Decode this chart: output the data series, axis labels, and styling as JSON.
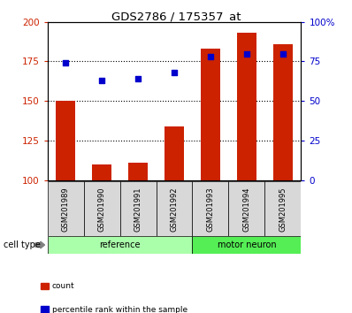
{
  "title": "GDS2786 / 175357_at",
  "samples": [
    "GSM201989",
    "GSM201990",
    "GSM201991",
    "GSM201992",
    "GSM201993",
    "GSM201994",
    "GSM201995"
  ],
  "bar_values": [
    150,
    110,
    111,
    134,
    183,
    193,
    186
  ],
  "scatter_pct": [
    74,
    63,
    64,
    68,
    78,
    80,
    80
  ],
  "bar_color": "#cc2200",
  "scatter_color": "#0000cc",
  "ylim_left": [
    100,
    200
  ],
  "ylim_right": [
    0,
    100
  ],
  "yticks_left": [
    100,
    125,
    150,
    175,
    200
  ],
  "yticks_right": [
    0,
    25,
    50,
    75,
    100
  ],
  "ytick_labels_left": [
    "100",
    "125",
    "150",
    "175",
    "200"
  ],
  "ytick_labels_right": [
    "0",
    "25",
    "50",
    "75",
    "100%"
  ],
  "hgrid_vals": [
    125,
    150,
    175
  ],
  "groups": [
    {
      "label": "reference",
      "start": 0,
      "end": 3,
      "color": "#aaffaa"
    },
    {
      "label": "motor neuron",
      "start": 4,
      "end": 6,
      "color": "#55ee55"
    }
  ],
  "cell_type_label": "cell type",
  "legend_items": [
    {
      "label": "count",
      "color": "#cc2200"
    },
    {
      "label": "percentile rank within the sample",
      "color": "#0000cc"
    }
  ],
  "bg_color": "#d8d8d8",
  "bar_width": 0.55,
  "n_samples": 7
}
